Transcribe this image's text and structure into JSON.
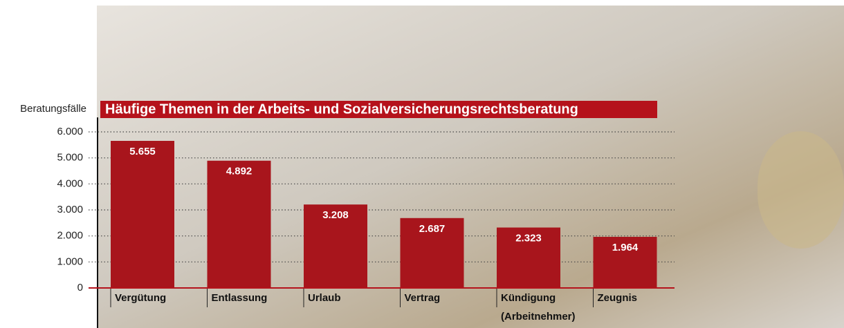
{
  "chart_data": {
    "type": "bar",
    "title": "Häufige Themen in der Arbeits- und Sozialversicherungsrechtsberatung",
    "y_label": "Beratungsfälle",
    "categories": [
      "Vergütung",
      "Entlassung",
      "Urlaub",
      "Vertrag",
      "Kündigung (Arbeitnehmer)",
      "Zeugnis"
    ],
    "values": [
      5655,
      4892,
      3208,
      2687,
      2323,
      1964
    ],
    "value_labels": [
      "5.655",
      "4.892",
      "3.208",
      "2.687",
      "2.323",
      "1.964"
    ],
    "color": "#a8151c",
    "ylim": [
      0,
      6000
    ],
    "yticks": [
      0,
      {
        "value": 1000,
        "label": "1.000"
      },
      {
        "value": 2000,
        "label": "2.000"
      },
      {
        "value": 3000,
        "label": "3.000"
      },
      {
        "value": 4000,
        "label": "4.000"
      },
      {
        "value": 5000,
        "label": "5.000"
      },
      {
        "value": 6000,
        "label": "6.000"
      }
    ],
    "grid": true
  }
}
